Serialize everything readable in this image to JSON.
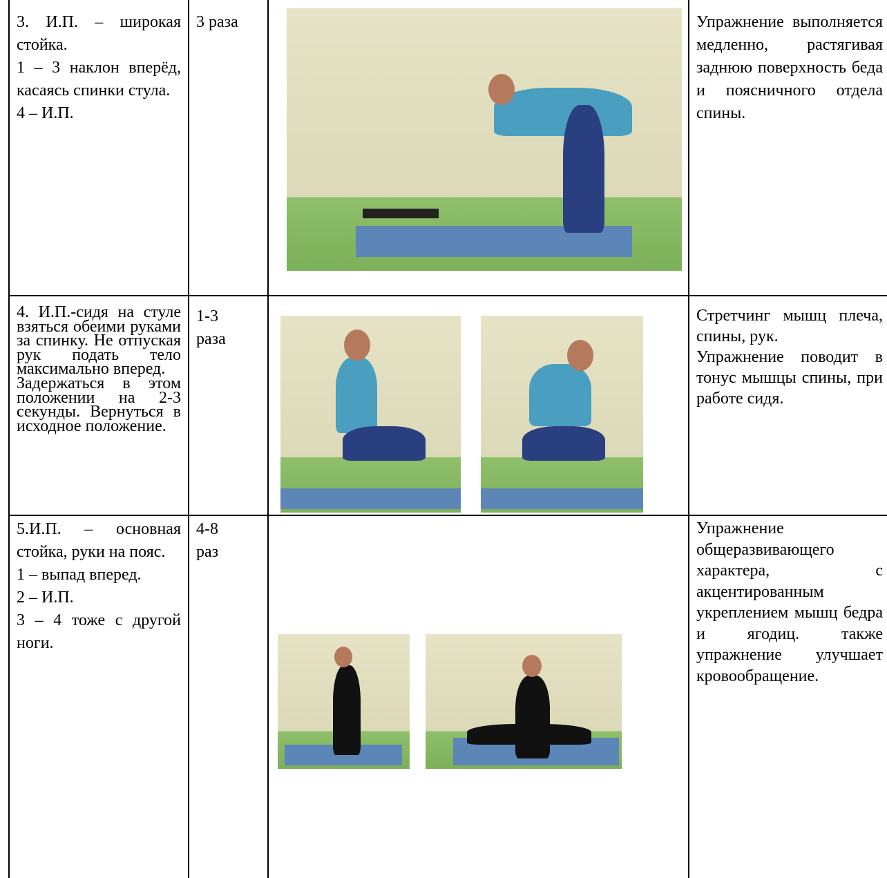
{
  "table": {
    "rows": [
      [
        [
          "3. И.П. – широкая стойка.",
          "1 – 3 наклон вперёд, касаясь спинки стула.",
          "4 – И.П."
        ],
        "3 раза",
        [
          "Упражнение выполняется медленно, растягивая заднюю поверхность беда и поясничного отдела спины."
        ]
      ],
      [
        [
          "4. И.П.-сидя на стуле взяться обеими руками за спинку. Не отпуская рук подать тело максимально вперед.",
          "Задержаться в этом положении на 2-3 секунды. Вернуться в исходное положение."
        ],
        "1-3 раза",
        [
          "Стретчинг мышц плеча, спины, рук.",
          "Упражнение поводит в тонус мышцы спины, при работе сидя."
        ]
      ],
      [
        [
          "5.И.П. – основная стойка, руки на пояс.",
          "1 – выпад вперед.",
          "2 – И.П.",
          "3 – 4 тоже с другой ноги."
        ],
        "4-8 раз",
        [
          "Упражнение общеразвивающего характера, с акцентированным укреплением мышц бедра и ягодиц. также упражнение улучшает кровообращение."
        ]
      ]
    ]
  }
}
